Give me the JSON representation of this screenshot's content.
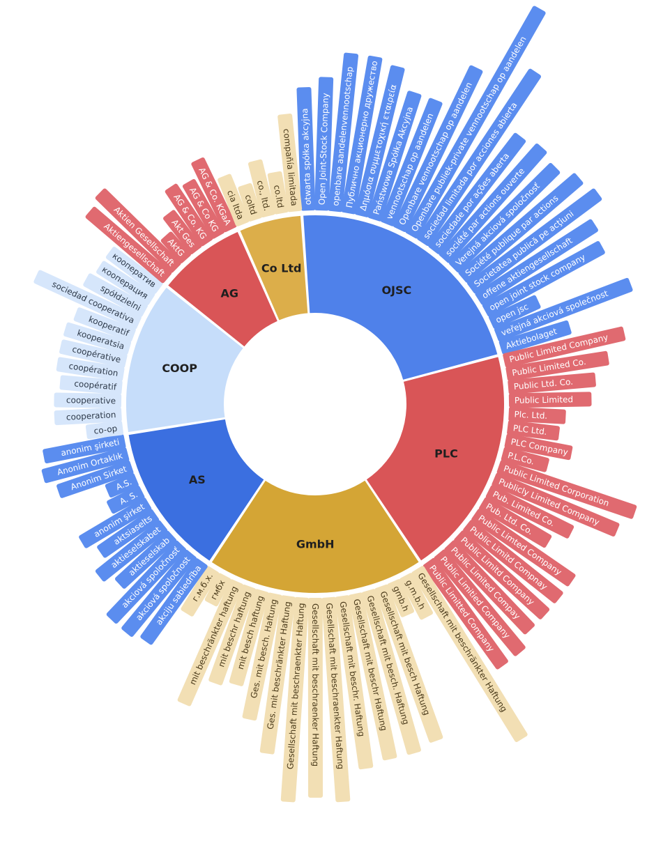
{
  "chart_data": {
    "type": "sunburst",
    "title": "",
    "colors": {
      "OJSC": {
        "inner": "#4f81ea",
        "outer": "#5b8def",
        "text": "#ffffff"
      },
      "PLC": {
        "inner": "#d95557",
        "outer": "#e06a70",
        "text": "#ffffff"
      },
      "GmbH": {
        "inner": "#d4a535",
        "outer": "#f2dfb4",
        "text": "#4a3a1a"
      },
      "AS": {
        "inner": "#3b6fe0",
        "outer": "#5b8def",
        "text": "#ffffff"
      },
      "COOP": {
        "inner": "#c6ddfa",
        "outer": "#d6e6fb",
        "text": "#2e3a4a"
      },
      "AG": {
        "inner": "#d95557",
        "outer": "#e06a70",
        "text": "#ffffff"
      },
      "Co Ltd": {
        "inner": "#dcae4a",
        "outer": "#f2dfb4",
        "text": "#4a3a1a"
      }
    },
    "groups": [
      {
        "name": "OJSC",
        "children": [
          "otwarta spółka akcyjna",
          "Open Joint-Stock Company",
          "openbare aandelenvennootschap",
          "Публично акционерно дружество",
          "Δημόσια συμμετοχική εταιρεία",
          "Państwowa Spółka Akcyjna",
          "vennootschap op aandelen",
          "Openbare vennootschap op aandelen",
          "Openbare publiek-private vennootschap op aandelen",
          "sociedad limitada por acciones abierta",
          "sociedade por ações aberta",
          "société par actions ouverte",
          "Verejná akciová spoločnosť",
          "Société publique par actions",
          "Societatea publică pe acţiuni",
          "offene aktiengesellschaft",
          "open joint stock company",
          "open jsc",
          "veřejná akciová společnost",
          "Aktiebolaget"
        ]
      },
      {
        "name": "PLC",
        "children": [
          "Public Limited Company",
          "Public Limited Co.",
          "Public Ltd. Co.",
          "Public Limited",
          "Plc. Ltd.",
          "PLC Ltd.",
          "PLC Company",
          "P.L.Co.",
          "Public Limited Corporation",
          "Publicly Limited Company",
          "Pub. Limited Co.",
          "Pub. Ltd. Co.",
          "Public Limted Company",
          "Public Limitd Compnay",
          "Public Limitd Company",
          "Public Limited Compay",
          "Public Limitied Company",
          "Public Limitted Company"
        ]
      },
      {
        "name": "GmbH",
        "children": [
          "Gesellschaft mit beschränkter Haftung",
          "g.m.b.h",
          "gmb.h",
          "Gesellschaft mit besch Haftung",
          "Gesellschaft mit besch. Haftung",
          "Gesellschaft mit beschr Haftung",
          "Gesellschaft mit beschr. Haftung",
          "Gesellschaft mit beschraenkter Haftung",
          "Gesellschaft mit beschraenker Haftung",
          "Gesellschaft mit beschraenkter Haftung",
          "Ges. mit beschränkter Haftung",
          "Ges. mit besch. Haftung",
          "mit besch haftung",
          "mit beschr haftung",
          "mit beschränkter haftung",
          "гмбх",
          "г.м.б.х."
        ]
      },
      {
        "name": "AS",
        "children": [
          "akciju sabiedrība",
          "akciová spoločnost",
          "akciová spoločnosť",
          "aktieselskab",
          "aktieselskabet",
          "aktsiaselts",
          "anonim şirket",
          "A. S.",
          "A.S.",
          "Anonim Sirket",
          "Anonim Ortaklık",
          "anonim şirketi"
        ]
      },
      {
        "name": "COOP",
        "children": [
          "co-op",
          "cooperation",
          "cooperative",
          "coopératif",
          "coopération",
          "coopérative",
          "kooperatsia",
          "kooperatif",
          "sociedad cooperativa",
          "spółdzielni",
          "кооперация",
          "кооператив"
        ]
      },
      {
        "name": "AG",
        "children": [
          "Aktiengesellschaft",
          "Aktien Gesellschaft",
          "AktG",
          "Akt Ges",
          "AG & Co. KG",
          "AG & Co KG",
          "AG & Co. KGaA"
        ]
      },
      {
        "name": "Co Ltd",
        "children": [
          "cia ltda",
          "coltd",
          "co., ltd.",
          "co.ltd",
          "compañía limitada"
        ]
      }
    ]
  }
}
